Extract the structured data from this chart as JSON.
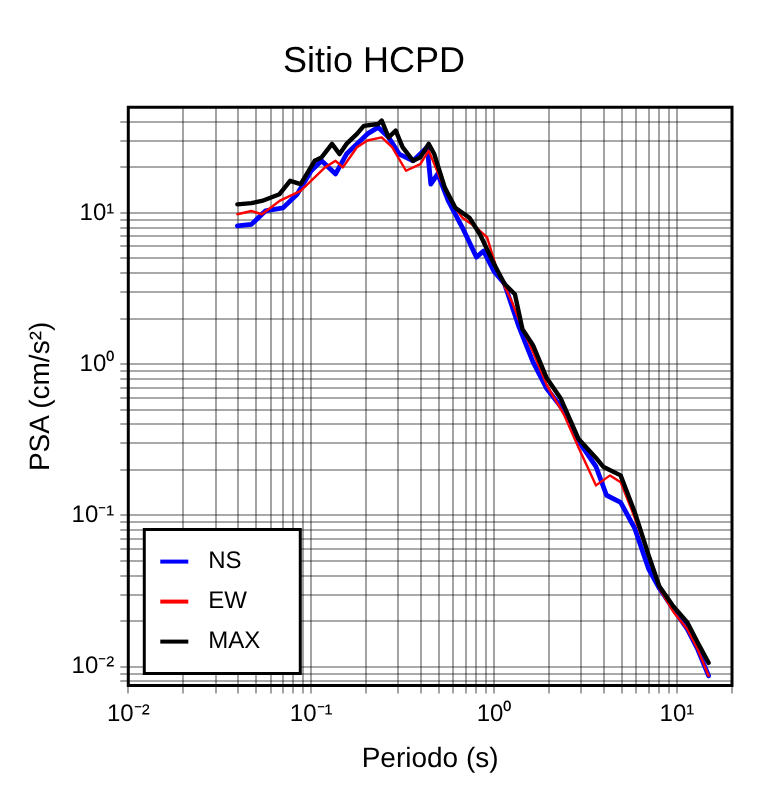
{
  "chart_data": {
    "type": "line",
    "title": "Sitio HCPD",
    "xlabel": "Periodo (s)",
    "ylabel": "PSA (cm/s²)",
    "log": "xy",
    "grid": true,
    "legend": "bottom left",
    "marker": "none",
    "line_style": "solid",
    "xlim": [
      0.01,
      20
    ],
    "ylim": [
      0.0075,
      50
    ],
    "xticks": [
      {
        "value": 0.01,
        "label": "10⁻²"
      },
      {
        "value": 0.02,
        "label": null
      },
      {
        "value": 0.03,
        "label": null
      },
      {
        "value": 0.04,
        "label": null
      },
      {
        "value": 0.05,
        "label": null
      },
      {
        "value": 0.06,
        "label": null
      },
      {
        "value": 0.07,
        "label": null
      },
      {
        "value": 0.08,
        "label": null
      },
      {
        "value": 0.09,
        "label": null
      },
      {
        "value": 0.1,
        "label": "10⁻¹"
      },
      {
        "value": 0.2,
        "label": null
      },
      {
        "value": 0.3,
        "label": null
      },
      {
        "value": 0.4,
        "label": null
      },
      {
        "value": 0.5,
        "label": null
      },
      {
        "value": 0.6,
        "label": null
      },
      {
        "value": 0.7,
        "label": null
      },
      {
        "value": 0.8,
        "label": null
      },
      {
        "value": 0.9,
        "label": null
      },
      {
        "value": 1,
        "label": "10⁰"
      },
      {
        "value": 2,
        "label": null
      },
      {
        "value": 3,
        "label": null
      },
      {
        "value": 4,
        "label": null
      },
      {
        "value": 5,
        "label": null
      },
      {
        "value": 6,
        "label": null
      },
      {
        "value": 7,
        "label": null
      },
      {
        "value": 8,
        "label": null
      },
      {
        "value": 9,
        "label": null
      },
      {
        "value": 10,
        "label": "10¹"
      },
      {
        "value": 20,
        "label": null
      }
    ],
    "yticks": [
      {
        "value": 0.008,
        "label": null
      },
      {
        "value": 0.009,
        "label": null
      },
      {
        "value": 0.01,
        "label": "10⁻²"
      },
      {
        "value": 0.02,
        "label": null
      },
      {
        "value": 0.03,
        "label": null
      },
      {
        "value": 0.04,
        "label": null
      },
      {
        "value": 0.05,
        "label": null
      },
      {
        "value": 0.06,
        "label": null
      },
      {
        "value": 0.07,
        "label": null
      },
      {
        "value": 0.08,
        "label": null
      },
      {
        "value": 0.09,
        "label": null
      },
      {
        "value": 0.1,
        "label": "10⁻¹"
      },
      {
        "value": 0.2,
        "label": null
      },
      {
        "value": 0.3,
        "label": null
      },
      {
        "value": 0.4,
        "label": null
      },
      {
        "value": 0.5,
        "label": null
      },
      {
        "value": 0.6,
        "label": null
      },
      {
        "value": 0.7,
        "label": null
      },
      {
        "value": 0.8,
        "label": null
      },
      {
        "value": 0.9,
        "label": null
      },
      {
        "value": 1,
        "label": "10⁰"
      },
      {
        "value": 2,
        "label": null
      },
      {
        "value": 3,
        "label": null
      },
      {
        "value": 4,
        "label": null
      },
      {
        "value": 5,
        "label": null
      },
      {
        "value": 6,
        "label": null
      },
      {
        "value": 7,
        "label": null
      },
      {
        "value": 8,
        "label": null
      },
      {
        "value": 9,
        "label": null
      },
      {
        "value": 10,
        "label": "10¹"
      },
      {
        "value": 20,
        "label": null
      },
      {
        "value": 30,
        "label": null
      },
      {
        "value": 40,
        "label": null
      }
    ],
    "series": [
      {
        "name": "NS",
        "color": "#0000ff",
        "x": [
          0.0395,
          0.0471,
          0.0562,
          0.0702,
          0.0838,
          0.1,
          0.114,
          0.136,
          0.156,
          0.178,
          0.203,
          0.232,
          0.265,
          0.303,
          0.361,
          0.431,
          0.451,
          0.492,
          0.562,
          0.671,
          0.801,
          0.876,
          1,
          1.14,
          1.36,
          1.63,
          1.94,
          2.42,
          2.9,
          3.61,
          4.12,
          4.92,
          5.88,
          7.02,
          8.01,
          9.57,
          11.4,
          13.0,
          14.9
        ],
        "values": [
          8.2,
          8.4,
          10.3,
          10.8,
          13.3,
          19.0,
          22.1,
          18.1,
          24.5,
          28.6,
          33.3,
          36.8,
          31.6,
          24.5,
          22.1,
          27.2,
          15.5,
          18.1,
          12.0,
          8.0,
          5.1,
          5.6,
          4.1,
          3.4,
          1.8,
          1.04,
          0.69,
          0.49,
          0.31,
          0.21,
          0.136,
          0.122,
          0.082,
          0.044,
          0.033,
          0.024,
          0.0177,
          0.013,
          0.0087
        ]
      },
      {
        "name": "EW",
        "color": "#ff0000",
        "x": [
          0.0395,
          0.0471,
          0.0538,
          0.0671,
          0.0876,
          0.1045,
          0.119,
          0.136,
          0.149,
          0.178,
          0.203,
          0.243,
          0.277,
          0.33,
          0.395,
          0.439,
          0.515,
          0.614,
          0.671,
          0.801,
          0.916,
          1.045,
          1.25,
          1.36,
          1.63,
          1.94,
          2.42,
          2.9,
          3.61,
          4.31,
          4.92,
          5.62,
          6.71,
          8.01,
          9.57,
          11.4,
          13.0,
          14.9
        ],
        "values": [
          9.8,
          10.3,
          9.8,
          12.0,
          14.0,
          17.2,
          20.0,
          22.1,
          20.0,
          27.2,
          30.1,
          31.6,
          27.2,
          19.0,
          21.0,
          25.8,
          16.3,
          10.8,
          9.3,
          8.0,
          6.9,
          4.1,
          2.6,
          2.0,
          1.21,
          0.73,
          0.46,
          0.28,
          0.158,
          0.184,
          0.166,
          0.111,
          0.063,
          0.033,
          0.023,
          0.0177,
          0.013,
          0.0087
        ]
      },
      {
        "name": "MAX",
        "color": "#000000",
        "x": [
          0.0395,
          0.0471,
          0.0538,
          0.0671,
          0.0767,
          0.0876,
          0.1045,
          0.114,
          0.13,
          0.143,
          0.156,
          0.178,
          0.194,
          0.232,
          0.243,
          0.265,
          0.29,
          0.316,
          0.361,
          0.395,
          0.439,
          0.471,
          0.538,
          0.614,
          0.733,
          0.838,
          1,
          1.14,
          1.3,
          1.43,
          1.63,
          1.94,
          2.32,
          2.9,
          3.61,
          3.95,
          4.92,
          5.88,
          7.02,
          8.01,
          9.57,
          11.4,
          13.0,
          14.9
        ],
        "values": [
          11.4,
          11.6,
          12.0,
          13.3,
          16.3,
          15.5,
          22.1,
          23.3,
          28.6,
          24.5,
          28.6,
          33.3,
          37.6,
          38.7,
          40.8,
          31.6,
          35.0,
          27.2,
          22.1,
          23.3,
          28.6,
          24.5,
          14.7,
          10.8,
          9.3,
          7.2,
          4.6,
          3.4,
          2.9,
          1.7,
          1.34,
          0.81,
          0.59,
          0.32,
          0.24,
          0.21,
          0.184,
          0.105,
          0.054,
          0.034,
          0.025,
          0.0196,
          0.0144,
          0.0106
        ]
      }
    ]
  }
}
